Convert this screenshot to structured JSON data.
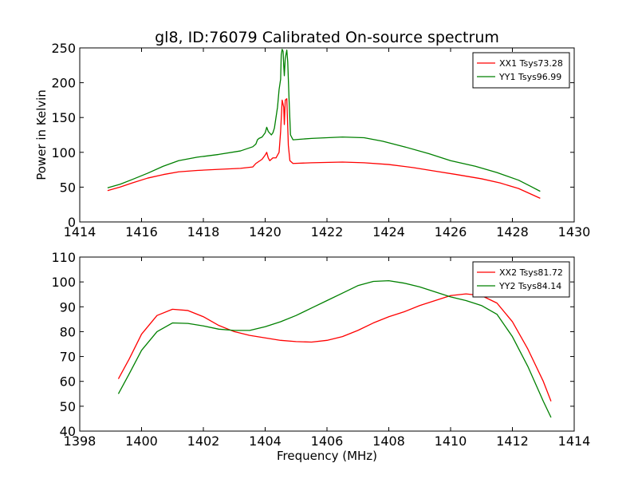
{
  "figure": {
    "title": "gl8, ID:76079 Calibrated On-source spectrum",
    "ylabel": "Power in Kelvin",
    "xlabel": "Frequency (MHz)"
  },
  "colors": {
    "red": "#ff0000",
    "green": "#008000",
    "axis": "#000000"
  },
  "chart_data": [
    {
      "type": "line",
      "title": "gl8, ID:76079 Calibrated On-source spectrum",
      "xlabel": "",
      "ylabel": "Power in Kelvin",
      "xlim": [
        1414,
        1430
      ],
      "ylim": [
        0,
        250
      ],
      "xticks": [
        1414,
        1416,
        1418,
        1420,
        1422,
        1424,
        1426,
        1428,
        1430
      ],
      "yticks": [
        0,
        50,
        100,
        150,
        200,
        250
      ],
      "grid": false,
      "legend_position": "top-right",
      "series": [
        {
          "name": "XX1 Tsys73.28",
          "color": "#ff0000",
          "points": [
            [
              1414.9,
              45
            ],
            [
              1415.3,
              50
            ],
            [
              1415.7,
              56
            ],
            [
              1416.2,
              63
            ],
            [
              1416.7,
              68
            ],
            [
              1417.2,
              72
            ],
            [
              1417.8,
              74
            ],
            [
              1418.5,
              75.5
            ],
            [
              1419.2,
              77
            ],
            [
              1419.6,
              79
            ],
            [
              1419.7,
              84
            ],
            [
              1419.8,
              87
            ],
            [
              1419.9,
              90
            ],
            [
              1420.0,
              96
            ],
            [
              1420.05,
              100
            ],
            [
              1420.1,
              92
            ],
            [
              1420.15,
              88
            ],
            [
              1420.25,
              92
            ],
            [
              1420.35,
              92
            ],
            [
              1420.45,
              100
            ],
            [
              1420.5,
              130
            ],
            [
              1420.55,
              175
            ],
            [
              1420.6,
              165
            ],
            [
              1420.62,
              140
            ],
            [
              1420.65,
              175
            ],
            [
              1420.7,
              177
            ],
            [
              1420.72,
              150
            ],
            [
              1420.75,
              110
            ],
            [
              1420.8,
              88
            ],
            [
              1420.9,
              84
            ],
            [
              1421.5,
              85
            ],
            [
              1422.5,
              86
            ],
            [
              1423.2,
              85
            ],
            [
              1424,
              82.5
            ],
            [
              1424.8,
              78
            ],
            [
              1425.5,
              73
            ],
            [
              1426.2,
              68
            ],
            [
              1427,
              62
            ],
            [
              1427.6,
              56
            ],
            [
              1428.2,
              48
            ],
            [
              1428.6,
              40
            ],
            [
              1428.9,
              34
            ]
          ]
        },
        {
          "name": "YY1 Tsys96.99",
          "color": "#008000",
          "points": [
            [
              1414.9,
              49
            ],
            [
              1415.3,
              54
            ],
            [
              1415.7,
              61
            ],
            [
              1416.2,
              70
            ],
            [
              1416.7,
              80
            ],
            [
              1417.2,
              88
            ],
            [
              1417.8,
              93
            ],
            [
              1418.5,
              97
            ],
            [
              1419.2,
              102
            ],
            [
              1419.6,
              108
            ],
            [
              1419.7,
              112
            ],
            [
              1419.75,
              118
            ],
            [
              1419.8,
              120
            ],
            [
              1419.9,
              122
            ],
            [
              1420.0,
              128
            ],
            [
              1420.05,
              136
            ],
            [
              1420.1,
              130
            ],
            [
              1420.2,
              125
            ],
            [
              1420.25,
              128
            ],
            [
              1420.3,
              135
            ],
            [
              1420.4,
              165
            ],
            [
              1420.45,
              190
            ],
            [
              1420.5,
              205
            ],
            [
              1420.52,
              240
            ],
            [
              1420.55,
              248
            ],
            [
              1420.58,
              245
            ],
            [
              1420.6,
              225
            ],
            [
              1420.62,
              210
            ],
            [
              1420.65,
              235
            ],
            [
              1420.7,
              247
            ],
            [
              1420.73,
              230
            ],
            [
              1420.77,
              180
            ],
            [
              1420.82,
              125
            ],
            [
              1420.9,
              118
            ],
            [
              1421.5,
              120
            ],
            [
              1422.5,
              122
            ],
            [
              1423.2,
              121
            ],
            [
              1423.8,
              116
            ],
            [
              1424.5,
              108
            ],
            [
              1425.3,
              98
            ],
            [
              1426.0,
              88
            ],
            [
              1426.8,
              80
            ],
            [
              1427.5,
              71
            ],
            [
              1428.2,
              60
            ],
            [
              1428.6,
              51
            ],
            [
              1428.9,
              44
            ]
          ]
        }
      ]
    },
    {
      "type": "line",
      "title": "",
      "xlabel": "Frequency (MHz)",
      "ylabel": "",
      "xlim": [
        1398,
        1414
      ],
      "ylim": [
        40,
        110
      ],
      "xticks": [
        1398,
        1400,
        1402,
        1404,
        1406,
        1408,
        1410,
        1412,
        1414
      ],
      "yticks": [
        40,
        50,
        60,
        70,
        80,
        90,
        100,
        110
      ],
      "grid": false,
      "legend_position": "top-right",
      "series": [
        {
          "name": "XX2 Tsys81.72",
          "color": "#ff0000",
          "points": [
            [
              1399.25,
              61
            ],
            [
              1399.6,
              69
            ],
            [
              1400.0,
              79
            ],
            [
              1400.5,
              86.5
            ],
            [
              1401.0,
              89
            ],
            [
              1401.5,
              88.5
            ],
            [
              1402.0,
              86
            ],
            [
              1402.5,
              82.5
            ],
            [
              1403.0,
              80
            ],
            [
              1403.5,
              78.5
            ],
            [
              1404.0,
              77.5
            ],
            [
              1404.5,
              76.5
            ],
            [
              1405.0,
              76
            ],
            [
              1405.5,
              75.8
            ],
            [
              1406.0,
              76.5
            ],
            [
              1406.5,
              78
            ],
            [
              1407.0,
              80.5
            ],
            [
              1407.5,
              83.5
            ],
            [
              1408.0,
              86
            ],
            [
              1408.5,
              88
            ],
            [
              1409.0,
              90.5
            ],
            [
              1409.5,
              92.5
            ],
            [
              1410.0,
              94.5
            ],
            [
              1410.5,
              95.2
            ],
            [
              1411.0,
              94.5
            ],
            [
              1411.5,
              91.5
            ],
            [
              1412.0,
              84
            ],
            [
              1412.5,
              73
            ],
            [
              1413.0,
              60
            ],
            [
              1413.25,
              52
            ]
          ]
        },
        {
          "name": "YY2 Tsys84.14",
          "color": "#008000",
          "points": [
            [
              1399.25,
              55
            ],
            [
              1399.6,
              63
            ],
            [
              1400.0,
              72.5
            ],
            [
              1400.5,
              80
            ],
            [
              1401.0,
              83.5
            ],
            [
              1401.5,
              83.3
            ],
            [
              1402.0,
              82.3
            ],
            [
              1402.5,
              81
            ],
            [
              1403.0,
              80.5
            ],
            [
              1403.5,
              80.5
            ],
            [
              1404.0,
              82
            ],
            [
              1404.5,
              84
            ],
            [
              1405.0,
              86.5
            ],
            [
              1405.5,
              89.5
            ],
            [
              1406.0,
              92.5
            ],
            [
              1406.5,
              95.5
            ],
            [
              1407.0,
              98.5
            ],
            [
              1407.5,
              100.2
            ],
            [
              1408.0,
              100.5
            ],
            [
              1408.5,
              99.5
            ],
            [
              1409.0,
              98
            ],
            [
              1409.5,
              96
            ],
            [
              1410.0,
              94
            ],
            [
              1410.5,
              92.5
            ],
            [
              1411.0,
              90.5
            ],
            [
              1411.5,
              87
            ],
            [
              1412.0,
              78
            ],
            [
              1412.5,
              66
            ],
            [
              1413.0,
              52
            ],
            [
              1413.25,
              45.5
            ]
          ]
        }
      ]
    }
  ]
}
